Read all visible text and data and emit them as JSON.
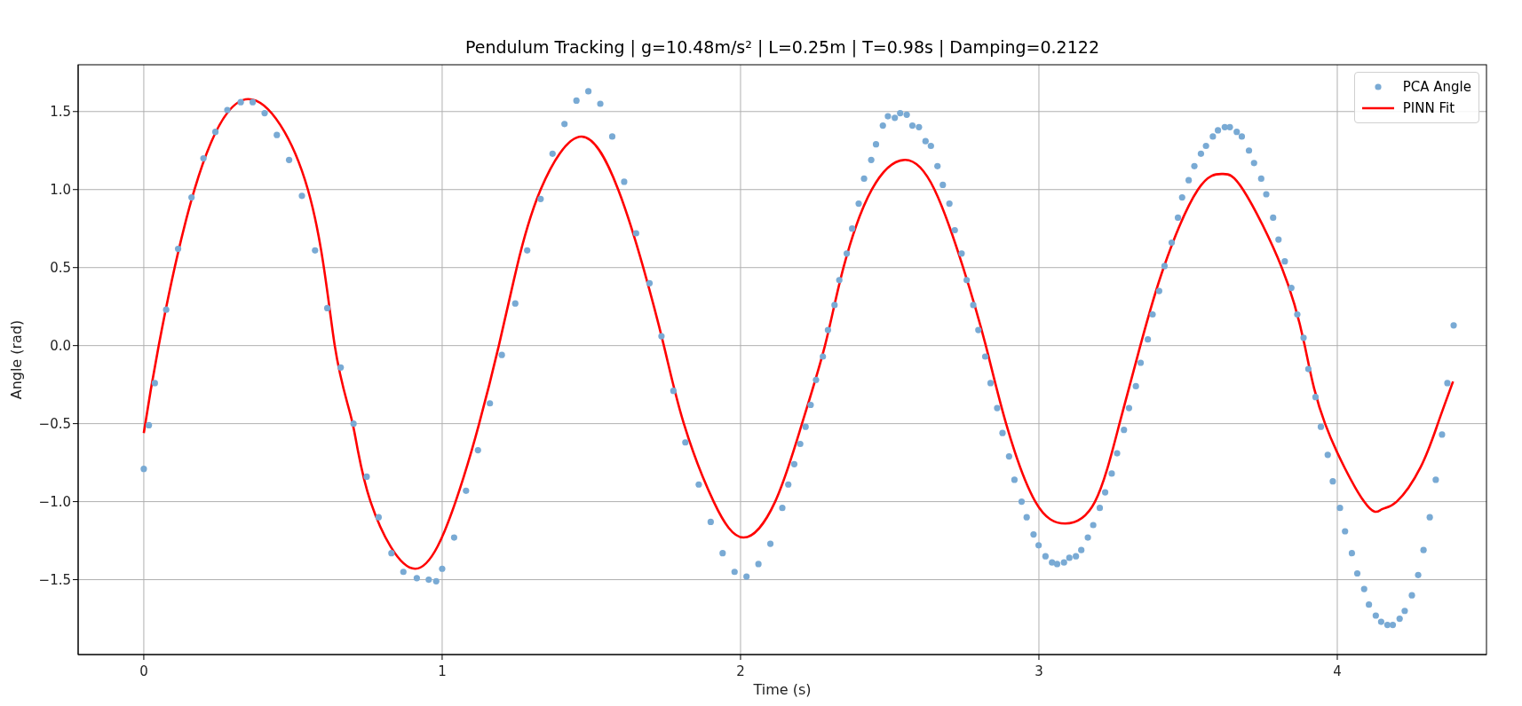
{
  "chart_data": {
    "type": "scatter",
    "title": "Pendulum Tracking | g=10.48m/s² | L=0.25m | T=0.98s | Damping=0.2122",
    "xlabel": "Time (s)",
    "ylabel": "Angle (rad)",
    "xlim": [
      -0.22,
      4.5
    ],
    "ylim": [
      -1.98,
      1.8
    ],
    "xticks": [
      0,
      1,
      2,
      3,
      4
    ],
    "yticks": [
      {
        "value": -1.5,
        "label": "−1.5"
      },
      {
        "value": -1,
        "label": "−1.0"
      },
      {
        "value": -0.5,
        "label": "−0.5"
      },
      {
        "value": 0,
        "label": "0.0"
      },
      {
        "value": 0.5,
        "label": "0.5"
      },
      {
        "value": 1,
        "label": "1.0"
      },
      {
        "value": 1.5,
        "label": "1.5"
      }
    ],
    "grid": true,
    "legend": "top right",
    "series": [
      {
        "name": "PCA Angle",
        "marker": "circle",
        "color": "#79aad4",
        "x": [
          0,
          0.017,
          0.037,
          0.075,
          0.115,
          0.16,
          0.2,
          0.24,
          0.28,
          0.325,
          0.365,
          0.405,
          0.446,
          0.487,
          0.53,
          0.574,
          0.615,
          0.66,
          0.703,
          0.747,
          0.787,
          0.83,
          0.87,
          0.915,
          0.955,
          0.98,
          1.0,
          1.04,
          1.08,
          1.12,
          1.16,
          1.2,
          1.245,
          1.285,
          1.33,
          1.37,
          1.41,
          1.45,
          1.49,
          1.53,
          1.57,
          1.61,
          1.65,
          1.695,
          1.735,
          1.775,
          1.815,
          1.86,
          1.9,
          1.94,
          1.98,
          2.02,
          2.06,
          2.1,
          2.14,
          2.16,
          2.18,
          2.2,
          2.218,
          2.235,
          2.253,
          2.276,
          2.293,
          2.315,
          2.331,
          2.356,
          2.374,
          2.396,
          2.414,
          2.438,
          2.454,
          2.477,
          2.494,
          2.517,
          2.535,
          2.557,
          2.576,
          2.598,
          2.62,
          2.638,
          2.66,
          2.678,
          2.7,
          2.718,
          2.741,
          2.758,
          2.78,
          2.797,
          2.82,
          2.838,
          2.86,
          2.878,
          2.9,
          2.918,
          2.942,
          2.959,
          2.982,
          2.999,
          3.022,
          3.044,
          3.061,
          3.084,
          3.102,
          3.124,
          3.142,
          3.164,
          3.182,
          3.204,
          3.222,
          3.244,
          3.262,
          3.285,
          3.302,
          3.325,
          3.341,
          3.365,
          3.381,
          3.403,
          3.421,
          3.445,
          3.466,
          3.48,
          3.502,
          3.521,
          3.543,
          3.56,
          3.583,
          3.6,
          3.623,
          3.64,
          3.663,
          3.68,
          3.704,
          3.721,
          3.745,
          3.762,
          3.785,
          3.803,
          3.824,
          3.846,
          3.866,
          3.887,
          3.903,
          3.927,
          3.945,
          3.968,
          3.985,
          4.009,
          4.026,
          4.049,
          4.067,
          4.09,
          4.106,
          4.129,
          4.147,
          4.168,
          4.186,
          4.209,
          4.226,
          4.25,
          4.271,
          4.289,
          4.31,
          4.33,
          4.351,
          4.369,
          4.39
        ],
        "values": [
          -0.79,
          -0.51,
          -0.24,
          0.23,
          0.62,
          0.95,
          1.2,
          1.37,
          1.51,
          1.56,
          1.56,
          1.49,
          1.35,
          1.19,
          0.96,
          0.61,
          0.24,
          -0.14,
          -0.5,
          -0.84,
          -1.1,
          -1.33,
          -1.45,
          -1.49,
          -1.5,
          -1.51,
          -1.43,
          -1.23,
          -0.93,
          -0.67,
          -0.37,
          -0.06,
          0.27,
          0.61,
          0.94,
          1.23,
          1.42,
          1.57,
          1.63,
          1.55,
          1.34,
          1.05,
          0.72,
          0.4,
          0.06,
          -0.29,
          -0.62,
          -0.89,
          -1.13,
          -1.33,
          -1.45,
          -1.48,
          -1.4,
          -1.27,
          -1.04,
          -0.89,
          -0.76,
          -0.63,
          -0.52,
          -0.38,
          -0.22,
          -0.07,
          0.1,
          0.26,
          0.42,
          0.59,
          0.75,
          0.91,
          1.07,
          1.19,
          1.29,
          1.41,
          1.47,
          1.46,
          1.49,
          1.48,
          1.41,
          1.4,
          1.31,
          1.28,
          1.15,
          1.03,
          0.91,
          0.74,
          0.59,
          0.42,
          0.26,
          0.1,
          -0.07,
          -0.24,
          -0.4,
          -0.56,
          -0.71,
          -0.86,
          -1.0,
          -1.1,
          -1.21,
          -1.28,
          -1.35,
          -1.39,
          -1.4,
          -1.39,
          -1.36,
          -1.35,
          -1.31,
          -1.23,
          -1.15,
          -1.04,
          -0.94,
          -0.82,
          -0.69,
          -0.54,
          -0.4,
          -0.26,
          -0.11,
          0.04,
          0.2,
          0.35,
          0.51,
          0.66,
          0.82,
          0.95,
          1.06,
          1.15,
          1.23,
          1.28,
          1.34,
          1.38,
          1.4,
          1.4,
          1.37,
          1.34,
          1.25,
          1.17,
          1.07,
          0.97,
          0.82,
          0.68,
          0.54,
          0.37,
          0.2,
          0.05,
          -0.15,
          -0.33,
          -0.52,
          -0.7,
          -0.87,
          -1.04,
          -1.19,
          -1.33,
          -1.46,
          -1.56,
          -1.66,
          -1.73,
          -1.77,
          -1.79,
          -1.79,
          -1.75,
          -1.7,
          -1.6,
          -1.47,
          -1.31,
          -1.1,
          -0.86,
          -0.57,
          -0.24,
          0.13
        ]
      },
      {
        "name": "PINN Fit",
        "type": "line",
        "marker": "none",
        "line_style": "solid",
        "color": "#ff0000",
        "x": [
          0,
          0.05,
          0.17,
          0.35,
          0.55,
          0.64,
          0.7,
          0.76,
          0.91,
          1.045,
          1.124,
          1.19,
          1.25,
          1.33,
          1.467,
          1.59,
          1.674,
          1.743,
          1.81,
          1.91,
          2.01,
          2.116,
          2.206,
          2.283,
          2.345,
          2.44,
          2.552,
          2.65,
          2.746,
          2.822,
          2.89,
          2.988,
          3.088,
          3.188,
          3.27,
          3.34,
          3.418,
          3.533,
          3.615,
          3.684,
          3.814,
          3.891,
          3.959,
          4.09,
          4.148,
          4.199,
          4.279,
          4.337,
          4.388
        ],
        "values": [
          -0.56,
          0.0,
          1.0,
          1.58,
          1.0,
          0.0,
          -0.5,
          -1.0,
          -1.43,
          -1.0,
          -0.5,
          0.0,
          0.5,
          1.0,
          1.34,
          1.0,
          0.5,
          0.0,
          -0.5,
          -1.0,
          -1.23,
          -1.0,
          -0.5,
          0.0,
          0.5,
          1.0,
          1.19,
          1.0,
          0.5,
          0.0,
          -0.5,
          -1.0,
          -1.14,
          -1.0,
          -0.5,
          0.0,
          0.5,
          1.0,
          1.1,
          1.0,
          0.5,
          0.0,
          -0.5,
          -1.0,
          -1.05,
          -1.0,
          -0.78,
          -0.5,
          -0.23
        ]
      }
    ]
  }
}
